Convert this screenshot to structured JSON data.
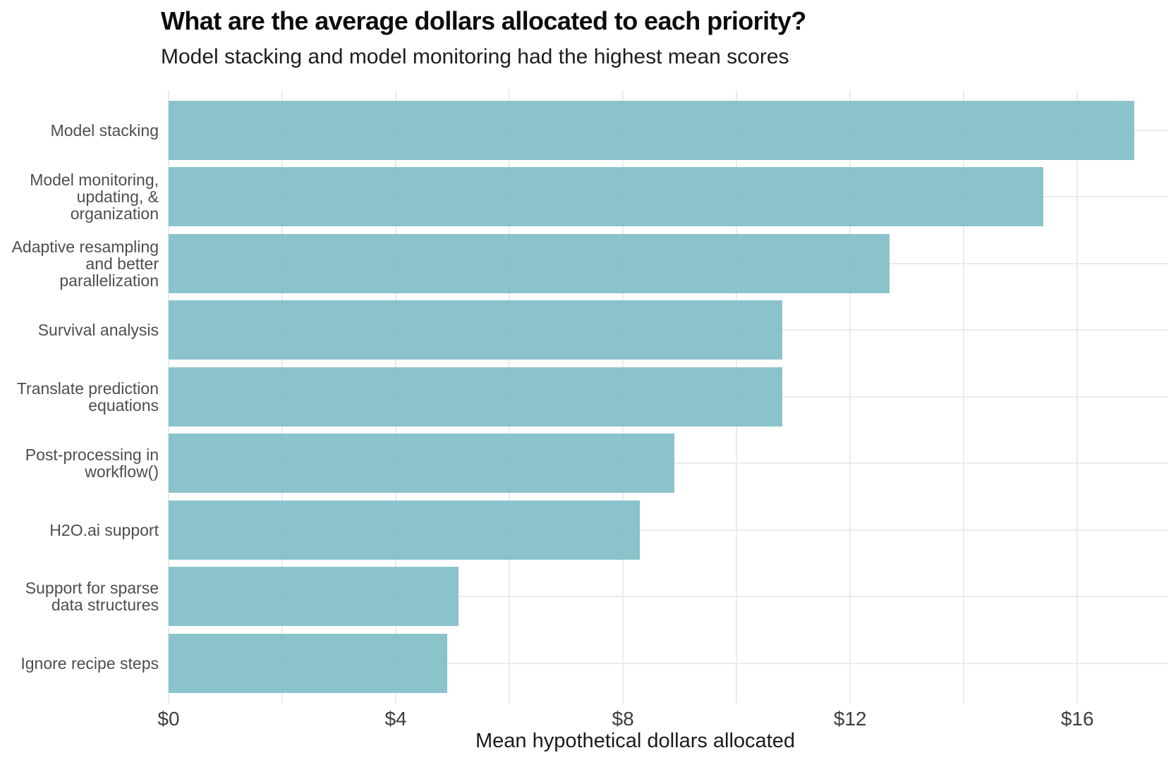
{
  "chart_data": {
    "type": "bar",
    "orientation": "horizontal",
    "title": "What are the average dollars allocated to each priority?",
    "subtitle": "Model stacking and model monitoring had the highest mean scores",
    "xlabel": "Mean hypothetical dollars allocated",
    "ylabel": "",
    "categories": [
      "Model stacking",
      "Model monitoring, updating, & organization",
      "Adaptive resampling and better parallelization",
      "Survival analysis",
      "Translate prediction equations",
      "Post-processing in workflow()",
      "H2O.ai support",
      "Support for sparse data structures",
      "Ignore recipe steps"
    ],
    "category_label_lines": [
      [
        "Model stacking"
      ],
      [
        "Model monitoring,",
        "updating, &",
        "organization"
      ],
      [
        "Adaptive resampling",
        "and better",
        "parallelization"
      ],
      [
        "Survival analysis"
      ],
      [
        "Translate prediction",
        "equations"
      ],
      [
        "Post-processing in",
        "workflow()"
      ],
      [
        "H2O.ai support"
      ],
      [
        "Support for sparse",
        "data structures"
      ],
      [
        "Ignore recipe steps"
      ]
    ],
    "values": [
      17.0,
      15.4,
      12.7,
      10.8,
      10.8,
      8.9,
      8.3,
      5.1,
      4.9
    ],
    "x_ticks": [
      {
        "label": "$0",
        "value": 0
      },
      {
        "label": "$4",
        "value": 4
      },
      {
        "label": "$8",
        "value": 8
      },
      {
        "label": "$12",
        "value": 12
      },
      {
        "label": "$16",
        "value": 16
      }
    ],
    "xlim": [
      0,
      17.6
    ],
    "grid_step": 2,
    "grid": "on",
    "legend_position": "none",
    "bar_color": "#7ABBC4",
    "bar_opacity": 0.88,
    "bar_color_rendered": "#8AC2CB",
    "gridline_color": "#EBEBEB"
  }
}
